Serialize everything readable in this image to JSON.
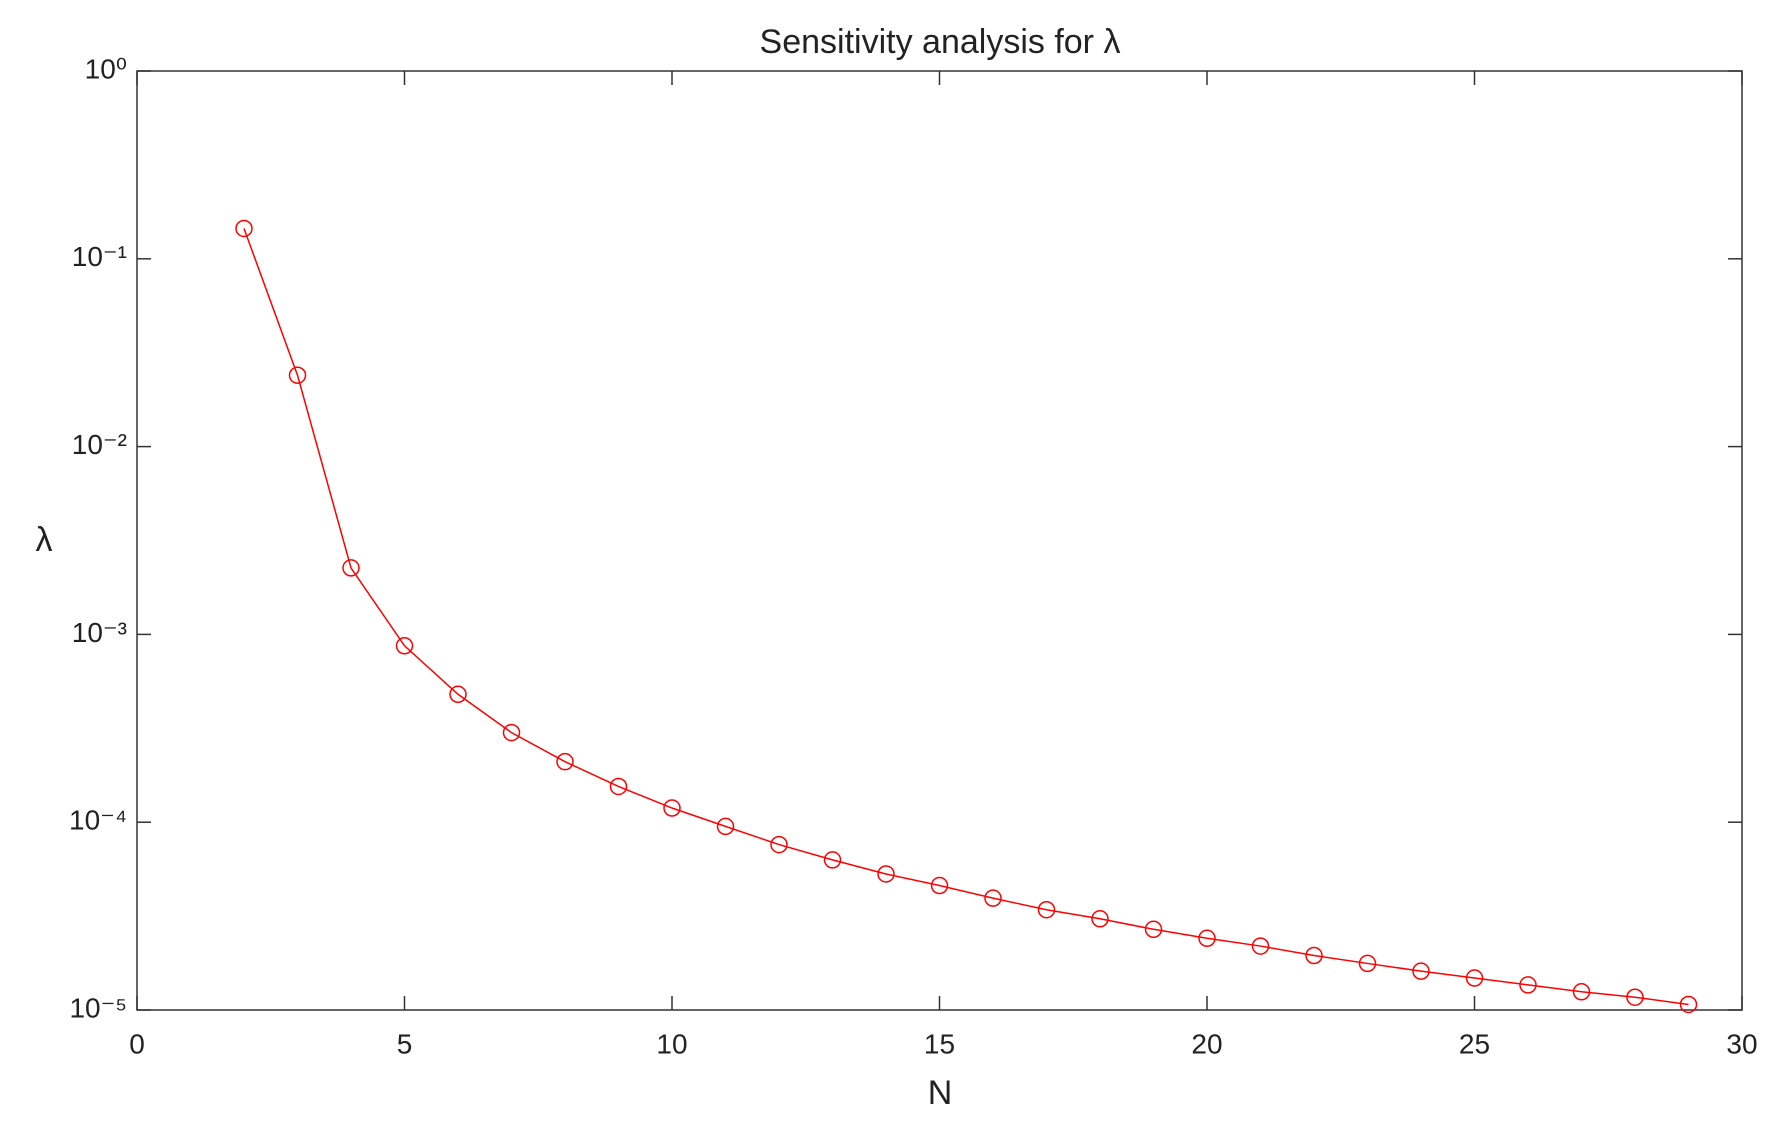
{
  "chart_data": {
    "type": "line",
    "title": "Sensitivity analysis for λ",
    "x_label": "N",
    "y_label": "λ",
    "x": [
      2,
      3,
      4,
      5,
      6,
      7,
      8,
      9,
      10,
      11,
      12,
      13,
      14,
      15,
      16,
      17,
      18,
      19,
      20,
      21,
      22,
      23,
      24,
      25,
      26,
      27,
      28,
      29
    ],
    "series": [
      {
        "color": "#ff0000",
        "marker": "circle",
        "values": [
          0.145,
          0.024,
          0.00226,
          0.00087,
          0.00048,
          0.0003,
          0.00021,
          0.000155,
          0.000119,
          9.5e-05,
          7.6e-05,
          6.3e-05,
          5.3e-05,
          4.6e-05,
          3.94e-05,
          3.42e-05,
          3.06e-05,
          2.69e-05,
          2.41e-05,
          2.19e-05,
          1.95e-05,
          1.77e-05,
          1.61e-05,
          1.48e-05,
          1.36e-05,
          1.25e-05,
          1.17e-05,
          1.07e-05
        ]
      }
    ],
    "xlim": [
      0,
      30
    ],
    "xticks": [
      0,
      5,
      10,
      15,
      20,
      25,
      30
    ],
    "ylim": [
      1e-05,
      1
    ],
    "yscale": "log",
    "yticks": [
      {
        "value": 1e-05,
        "label": "10⁻⁵"
      },
      {
        "value": 0.0001,
        "label": "10⁻⁴"
      },
      {
        "value": 0.001,
        "label": "10⁻³"
      },
      {
        "value": 0.01,
        "label": "10⁻²"
      },
      {
        "value": 0.1,
        "label": "10⁻¹"
      },
      {
        "value": 1,
        "label": "10⁰"
      }
    ],
    "grid": false
  }
}
